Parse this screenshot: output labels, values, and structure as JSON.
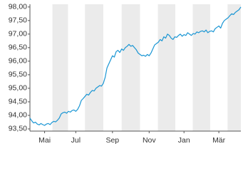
{
  "chart_data": {
    "type": "line",
    "series": [
      {
        "color": "#1a96d4",
        "values": [
          93.9,
          93.8,
          93.72,
          93.75,
          93.68,
          93.65,
          93.7,
          93.66,
          93.63,
          93.68,
          93.7,
          93.66,
          93.74,
          93.78,
          93.76,
          93.82,
          93.9,
          94.05,
          94.1,
          94.12,
          94.08,
          94.15,
          94.12,
          94.18,
          94.2,
          94.15,
          94.22,
          94.35,
          94.55,
          94.62,
          94.7,
          94.78,
          94.75,
          94.85,
          94.92,
          94.9,
          95.0,
          95.05,
          95.1,
          95.08,
          95.18,
          95.4,
          95.75,
          95.9,
          96.05,
          96.2,
          96.15,
          96.35,
          96.4,
          96.32,
          96.45,
          96.4,
          96.5,
          96.55,
          96.62,
          96.55,
          96.58,
          96.5,
          96.42,
          96.3,
          96.25,
          96.2,
          96.22,
          96.18,
          96.25,
          96.2,
          96.3,
          96.45,
          96.6,
          96.65,
          96.7,
          96.8,
          96.75,
          96.9,
          96.85,
          97.0,
          96.95,
          96.85,
          96.8,
          96.9,
          96.88,
          96.95,
          97.0,
          96.92,
          96.98,
          96.95,
          97.05,
          97.0,
          96.95,
          97.02,
          97.0,
          97.08,
          97.05,
          97.1,
          97.12,
          97.08,
          97.15,
          97.05,
          97.1,
          97.12,
          97.08,
          97.2,
          97.25,
          97.3,
          97.22,
          97.4,
          97.5,
          97.55,
          97.6,
          97.68,
          97.75,
          97.72,
          97.8,
          97.85,
          97.9,
          98.0
        ]
      }
    ],
    "xlim": [
      0,
      115
    ],
    "xticks": [
      {
        "value": 8,
        "label": "Mai"
      },
      {
        "value": 25,
        "label": "Jul"
      },
      {
        "value": 45,
        "label": "Sep"
      },
      {
        "value": 65,
        "label": "Nov"
      },
      {
        "value": 84,
        "label": "Jan"
      },
      {
        "value": 103,
        "label": "Mär"
      }
    ],
    "ylim": [
      93.42,
      98.1
    ],
    "yticks": [
      {
        "value": 93.5,
        "label": "93,50"
      },
      {
        "value": 94,
        "label": "94,00"
      },
      {
        "value": 94.5,
        "label": "94,50"
      },
      {
        "value": 95,
        "label": "95,00"
      },
      {
        "value": 95.5,
        "label": "95,50"
      },
      {
        "value": 96,
        "label": "96,00"
      },
      {
        "value": 96.5,
        "label": "96,50"
      },
      {
        "value": 97,
        "label": "97,00"
      },
      {
        "value": 97.5,
        "label": "97,50"
      },
      {
        "value": 98,
        "label": "98,00"
      }
    ],
    "band_color": "#ebebeb"
  }
}
